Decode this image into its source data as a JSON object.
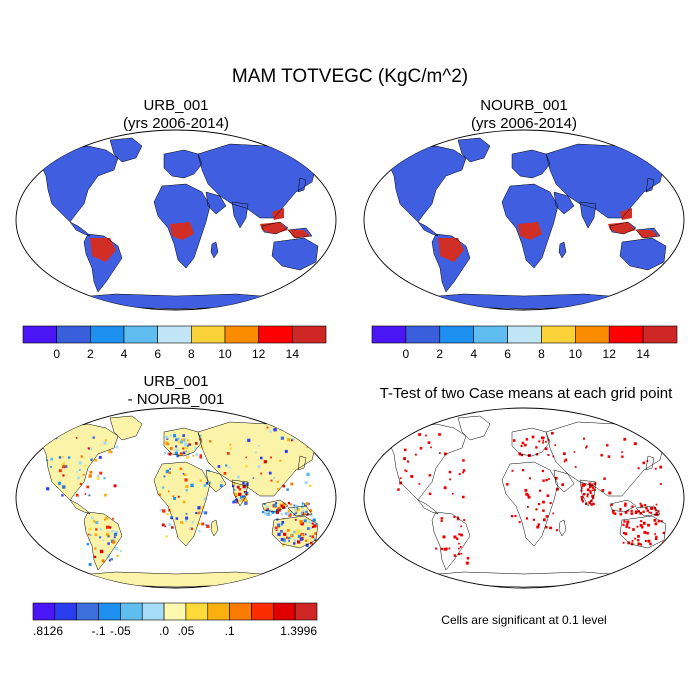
{
  "figure": {
    "title": "MAM TOTVEGC (KgC/m^2)"
  },
  "panels": [
    {
      "id": "urb",
      "title_line1": "URB_001",
      "title_line2": "(yrs 2006-2014)",
      "land_color": "#3f5fe0",
      "highlight_color": "#d12f26"
    },
    {
      "id": "nourb",
      "title_line1": "NOURB_001",
      "title_line2": "(yrs 2006-2014)",
      "land_color": "#3f5fe0",
      "highlight_color": "#d12f26"
    },
    {
      "id": "diff",
      "title_line1": "URB_001",
      "title_line2": "- NOURB_001",
      "land_color": "#fbf3a8",
      "highlight_color": "#e8221c"
    },
    {
      "id": "ttest",
      "title_line1": "T-Test of two Case means at each grid point",
      "title_line2": "",
      "land_color": "#ffffff",
      "highlight_color": "#ee0000"
    }
  ],
  "colorbars": {
    "abs": {
      "colors": [
        "#4a16f5",
        "#3a5fdc",
        "#1e90f0",
        "#5fbdf0",
        "#c0e6f5",
        "#fcd23a",
        "#fb8c00",
        "#fe0000",
        "#cf2626"
      ],
      "tick_labels": [
        "0",
        "2",
        "4",
        "6",
        "8",
        "10",
        "12",
        "14"
      ]
    },
    "diff": {
      "colors": [
        "#4a16f5",
        "#2a3ef0",
        "#3a6fdc",
        "#1e90f0",
        "#5fbdf0",
        "#a6dcf5",
        "#fff9b0",
        "#fdd93a",
        "#fcb010",
        "#fb7a00",
        "#fb2c00",
        "#e00000",
        "#cf2626"
      ],
      "tick_labels": [
        ".8126",
        "-.1",
        "-.05",
        ".0",
        ".05",
        ".1",
        "1.3996"
      ],
      "tick_boundaries": [
        0,
        3,
        4,
        6,
        7,
        9,
        13
      ]
    }
  },
  "significance_note": "Cells are significant at 0.1 level"
}
